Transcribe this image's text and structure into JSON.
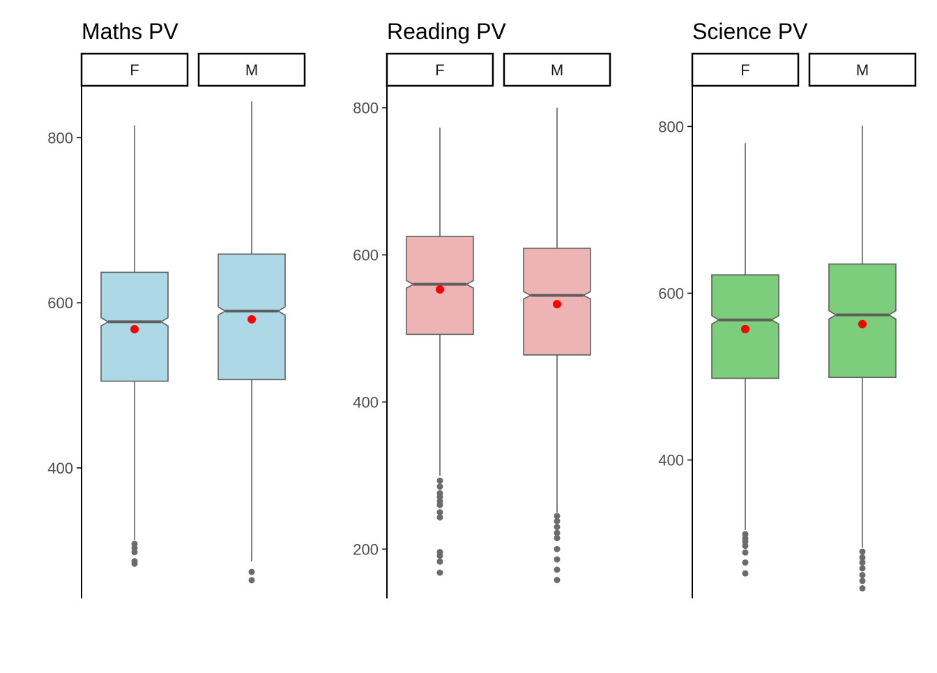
{
  "chart_data": [
    {
      "type": "boxplot",
      "title": "Maths PV",
      "ylim": [
        242,
        862
      ],
      "yticks": [
        400,
        600,
        800
      ],
      "fill": "#ADD8E6",
      "facets": [
        {
          "label": "F",
          "lower_whisker": 313,
          "q1": 505,
          "median": 577,
          "q3": 637,
          "upper_whisker": 815,
          "notch_low": 572,
          "notch_high": 582,
          "mean": 568,
          "outliers": [
            308,
            303,
            298,
            287,
            284
          ]
        },
        {
          "label": "M",
          "lower_whisker": 287,
          "q1": 507,
          "median": 590,
          "q3": 659,
          "upper_whisker": 844,
          "notch_low": 585,
          "notch_high": 595,
          "mean": 580,
          "outliers": [
            274,
            264
          ]
        }
      ]
    },
    {
      "type": "boxplot",
      "title": "Reading PV",
      "ylim": [
        133,
        829
      ],
      "yticks": [
        200,
        400,
        600,
        800
      ],
      "fill": "#EEB4B4",
      "facets": [
        {
          "label": "F",
          "lower_whisker": 300,
          "q1": 492,
          "median": 560,
          "q3": 625,
          "upper_whisker": 773,
          "notch_low": 555,
          "notch_high": 565,
          "mean": 553,
          "outliers": [
            293,
            285,
            276,
            271,
            265,
            260,
            250,
            243,
            196,
            191,
            183,
            168
          ]
        },
        {
          "label": "M",
          "lower_whisker": 250,
          "q1": 464,
          "median": 545,
          "q3": 609,
          "upper_whisker": 800,
          "notch_low": 540,
          "notch_high": 550,
          "mean": 533,
          "outliers": [
            245,
            238,
            230,
            222,
            215,
            200,
            186,
            172,
            158
          ]
        }
      ]
    },
    {
      "type": "boxplot",
      "title": "Science PV",
      "ylim": [
        234,
        848
      ],
      "yticks": [
        400,
        600,
        800
      ],
      "fill": "#7CCD7C",
      "facets": [
        {
          "label": "F",
          "lower_whisker": 316,
          "q1": 498,
          "median": 568,
          "q3": 622,
          "upper_whisker": 780,
          "notch_low": 563,
          "notch_high": 573,
          "mean": 557,
          "outliers": [
            311,
            306,
            302,
            297,
            289,
            277,
            264
          ]
        },
        {
          "label": "M",
          "lower_whisker": 295,
          "q1": 499,
          "median": 574,
          "q3": 635,
          "upper_whisker": 801,
          "notch_low": 569,
          "notch_high": 579,
          "mean": 563,
          "outliers": [
            290,
            283,
            277,
            270,
            262,
            255,
            246
          ]
        }
      ]
    }
  ],
  "colors": {
    "box_outline": "#5e5e5e",
    "whisker": "#5e5e5e",
    "outlier": "#6b6b6b",
    "mean_point": "#ff0000",
    "axis": "#000000",
    "tick_label": "#4d4d4d"
  }
}
